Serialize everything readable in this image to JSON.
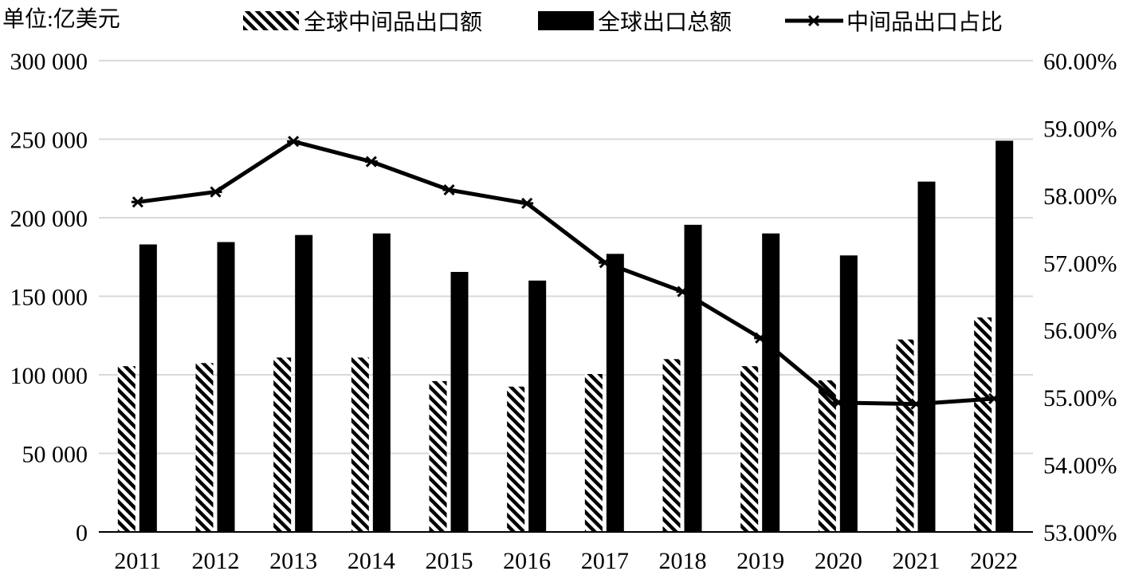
{
  "chart_data": {
    "type": "bar",
    "unit_label": "单位:亿美元",
    "categories": [
      "2011",
      "2012",
      "2013",
      "2014",
      "2015",
      "2016",
      "2017",
      "2018",
      "2019",
      "2020",
      "2021",
      "2022"
    ],
    "series": [
      {
        "name": "全球中间品出口额",
        "kind": "bar",
        "pattern": "hatched",
        "axis": "left",
        "values": [
          105500,
          107500,
          111000,
          111000,
          96000,
          92500,
          100500,
          110000,
          105500,
          96500,
          122500,
          136500
        ]
      },
      {
        "name": "全球出口总额",
        "kind": "bar",
        "pattern": "solid",
        "axis": "left",
        "values": [
          183000,
          184500,
          189000,
          190000,
          165500,
          160000,
          177000,
          195500,
          190000,
          176000,
          223000,
          249000
        ]
      },
      {
        "name": "中间品出口占比",
        "kind": "line",
        "marker": "asterisk",
        "axis": "right",
        "values": [
          57.9,
          58.05,
          58.8,
          58.5,
          58.08,
          57.88,
          57.0,
          56.57,
          55.88,
          54.92,
          54.9,
          54.98
        ]
      }
    ],
    "left_axis": {
      "min": 0,
      "max": 300000,
      "ticks": [
        0,
        50000,
        100000,
        150000,
        200000,
        250000,
        300000
      ],
      "tick_labels": [
        "0",
        "50 000",
        "100 000",
        "150 000",
        "200 000",
        "250 000",
        "300 000"
      ]
    },
    "right_axis": {
      "min": 53,
      "max": 60,
      "ticks": [
        53,
        54,
        55,
        56,
        57,
        58,
        59,
        60
      ],
      "tick_labels": [
        "53.00%",
        "54.00%",
        "55.00%",
        "56.00%",
        "57.00%",
        "58.00%",
        "59.00%",
        "60.00%"
      ]
    },
    "grid": true,
    "legend_position": "top",
    "colors": {
      "bars": "#000000",
      "line": "#000000",
      "grid": "#d9d9d9"
    }
  }
}
